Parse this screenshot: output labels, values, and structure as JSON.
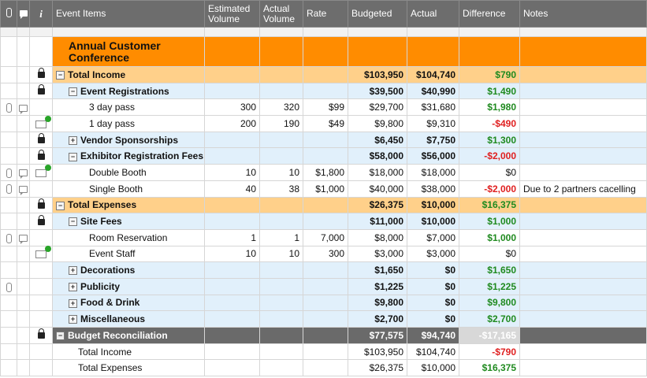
{
  "header": {
    "icon_attach": "paperclip-icon",
    "icon_comment": "comment-icon",
    "icon_info": "i",
    "event_items": "Event Items",
    "est_volume_1": "Estimated",
    "est_volume_2": "Volume",
    "act_volume_1": "Actual",
    "act_volume_2": "Volume",
    "rate": "Rate",
    "budgeted": "Budgeted",
    "actual": "Actual",
    "difference": "Difference",
    "notes": "Notes"
  },
  "title_row": {
    "line1": "Annual Customer",
    "line2": "Conference"
  },
  "rows": [
    {
      "item": "Total Income",
      "budgeted": "$103,950",
      "actual": "$104,740",
      "difference": "$790"
    },
    {
      "item": "Event Registrations",
      "budgeted": "$39,500",
      "actual": "$40,990",
      "difference": "$1,490"
    },
    {
      "item": "3 day pass",
      "est": "300",
      "act": "320",
      "rate": "$99",
      "budgeted": "$29,700",
      "actual": "$31,680",
      "difference": "$1,980"
    },
    {
      "item": "1 day pass",
      "est": "200",
      "act": "190",
      "rate": "$49",
      "budgeted": "$9,800",
      "actual": "$9,310",
      "difference": "-$490"
    },
    {
      "item": "Vendor Sponsorships",
      "budgeted": "$6,450",
      "actual": "$7,750",
      "difference": "$1,300"
    },
    {
      "item": "Exhibitor Registration Fees",
      "budgeted": "$58,000",
      "actual": "$56,000",
      "difference": "-$2,000"
    },
    {
      "item": "Double Booth",
      "est": "10",
      "act": "10",
      "rate": "$1,800",
      "budgeted": "$18,000",
      "actual": "$18,000",
      "difference": "$0"
    },
    {
      "item": "Single Booth",
      "est": "40",
      "act": "38",
      "rate": "$1,000",
      "budgeted": "$40,000",
      "actual": "$38,000",
      "difference": "-$2,000",
      "notes": "Due to 2 partners cacelling"
    },
    {
      "item": "Total Expenses",
      "budgeted": "$26,375",
      "actual": "$10,000",
      "difference": "$16,375"
    },
    {
      "item": "Site Fees",
      "budgeted": "$11,000",
      "actual": "$10,000",
      "difference": "$1,000"
    },
    {
      "item": "Room Reservation",
      "est": "1",
      "act": "1",
      "rate": "7,000",
      "budgeted": "$8,000",
      "actual": "$7,000",
      "difference": "$1,000"
    },
    {
      "item": "Event Staff",
      "est": "10",
      "act": "10",
      "rate": "300",
      "budgeted": "$3,000",
      "actual": "$3,000",
      "difference": "$0"
    },
    {
      "item": "Decorations",
      "budgeted": "$1,650",
      "actual": "$0",
      "difference": "$1,650"
    },
    {
      "item": "Publicity",
      "budgeted": "$1,225",
      "actual": "$0",
      "difference": "$1,225"
    },
    {
      "item": "Food & Drink",
      "budgeted": "$9,800",
      "actual": "$0",
      "difference": "$9,800"
    },
    {
      "item": "Miscellaneous",
      "budgeted": "$2,700",
      "actual": "$0",
      "difference": "$2,700"
    },
    {
      "item": "Budget Reconciliation",
      "budgeted": "$77,575",
      "actual": "$94,740",
      "difference": "-$17,165"
    },
    {
      "item": "Total Income",
      "budgeted": "$103,950",
      "actual": "$104,740",
      "difference": "-$790"
    },
    {
      "item": "Total Expenses",
      "budgeted": "$26,375",
      "actual": "$10,000",
      "difference": "$16,375"
    }
  ],
  "colors": {
    "header_bg": "#6d6d6d",
    "title_orange": "#ff8c00",
    "section_light_orange": "#ffd08a",
    "subsection_light_blue": "#e1f0fb",
    "reconciliation_gray": "#6a6a6a",
    "positive_green": "#1f8a1f",
    "negative_red": "#e02020"
  }
}
